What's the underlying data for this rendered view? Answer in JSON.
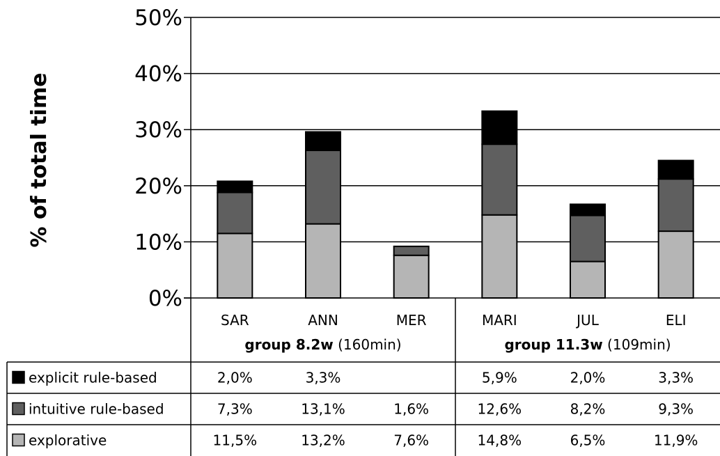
{
  "chart_data": {
    "type": "bar",
    "stacked": true,
    "ylabel": "% of total time",
    "ylim": [
      0,
      50
    ],
    "yticks": [
      "0%",
      "10%",
      "20%",
      "30%",
      "40%",
      "50%"
    ],
    "grid": true,
    "categories": [
      "SAR",
      "ANN",
      "MER",
      "MARI",
      "JUL",
      "ELI"
    ],
    "groups": [
      {
        "name": "group 8.2w",
        "detail": "(160min)"
      },
      {
        "name": "group 11.3w",
        "detail": "(109min)"
      }
    ],
    "series": [
      {
        "name": "explicit rule-based",
        "color": "#000000",
        "values": [
          2.0,
          3.3,
          null,
          5.9,
          2.0,
          3.3
        ],
        "labels": [
          "2,0%",
          "3,3%",
          "",
          "5,9%",
          "2,0%",
          "3,3%"
        ]
      },
      {
        "name": "intuitive rule-based",
        "color": "#5f5f5f",
        "values": [
          7.3,
          13.1,
          1.6,
          12.6,
          8.2,
          9.3
        ],
        "labels": [
          "7,3%",
          "13,1%",
          "1,6%",
          "12,6%",
          "8,2%",
          "9,3%"
        ]
      },
      {
        "name": "explorative",
        "color": "#b5b5b5",
        "values": [
          11.5,
          13.2,
          7.6,
          14.8,
          6.5,
          11.9
        ],
        "labels": [
          "11,5%",
          "13,2%",
          "7,6%",
          "14,8%",
          "6,5%",
          "11,9%"
        ]
      }
    ]
  }
}
